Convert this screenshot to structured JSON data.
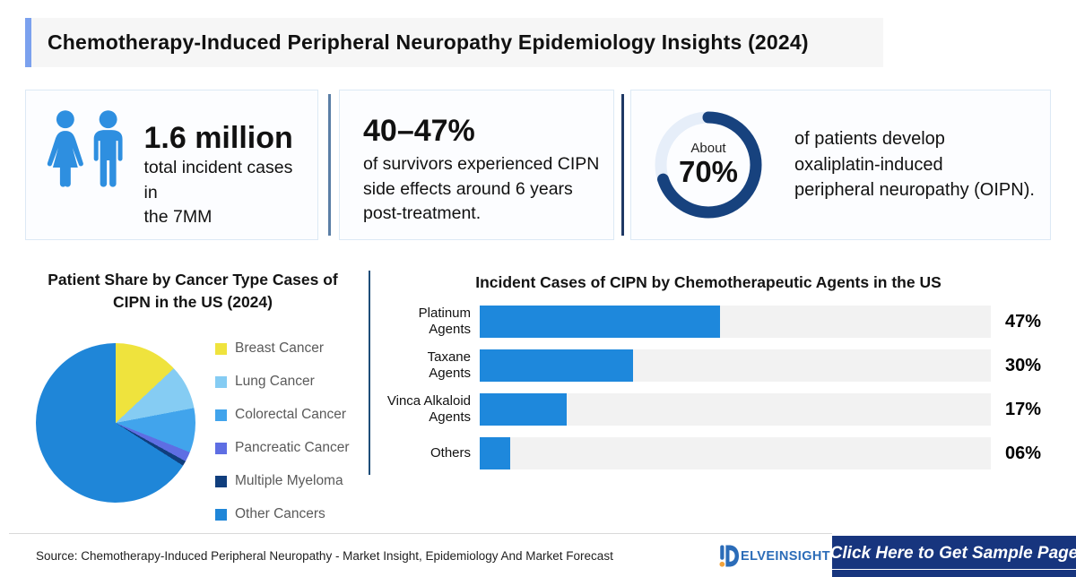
{
  "header": {
    "title": "Chemotherapy-Induced Peripheral Neuropathy Epidemiology Insights (2024)"
  },
  "stats": {
    "card1": {
      "icon": "male-female-icon",
      "value": "1.6 million",
      "label": "total incident cases in\nthe 7MM"
    },
    "card2": {
      "value": "40–47%",
      "label": "of survivors experienced CIPN\nside effects around 6 years\npost-treatment."
    },
    "card3": {
      "qualifier": "About",
      "value": "70%",
      "percent": 70,
      "label": "of patients develop\noxaliplatin-induced\nperipheral neuropathy (OIPN).",
      "ring_dark_color": "#17427E",
      "ring_light_color": "#E6EEF9"
    }
  },
  "chart_data": [
    {
      "type": "pie",
      "title": "Patient Share by Cancer Type Cases of\nCIPN in the US (2024)",
      "categories": [
        "Breast Cancer",
        "Lung Cancer",
        "Colorectal Cancer",
        "Pancreatic Cancer",
        "Multiple Myeloma",
        "Other Cancers"
      ],
      "values": [
        13,
        9,
        9,
        2,
        1,
        66
      ],
      "unit": "percent-share-estimated-from-slice-angles",
      "colors": [
        "#EFE33D",
        "#85CCF3",
        "#41A4EC",
        "#5E6EE3",
        "#103E7D",
        "#1F86D8"
      ],
      "legend_position": "right",
      "start_angle_deg": 0,
      "direction": "clockwise"
    },
    {
      "type": "bar",
      "title": "Incident Cases of CIPN by Chemotherapeutic Agents in the US",
      "orientation": "horizontal",
      "categories": [
        "Platinum\nAgents",
        "Taxane\nAgents",
        "Vinca Alkaloid\nAgents",
        "Others"
      ],
      "values": [
        47,
        30,
        17,
        6
      ],
      "value_labels": [
        "47%",
        "30%",
        "17%",
        "06%"
      ],
      "xlim": [
        0,
        100
      ],
      "bar_color": "#1E88DC",
      "track_color": "#F2F2F2",
      "grid": false,
      "legend": false
    }
  ],
  "footer": {
    "source": "Source: Chemotherapy-Induced Peripheral Neuropathy - Market Insight, Epidemiology And Market Forecast",
    "logo_d": "D",
    "logo_rest": "ELVEINSIGHT",
    "cta_label": "Click Here to Get Sample Page"
  },
  "colors": {
    "header_accent": "#7BA1EE",
    "header_bg": "#F6F6F6",
    "card_bg": "#FCFDFF",
    "card_border": "#DCE9F5",
    "divider_steel": "#5B7FA6",
    "divider_navy": "#1F3864",
    "mid_divider": "#1F4E79",
    "people_icon_blue": "#2E8FE0",
    "cta_bg": "#17357E",
    "logo_blue": "#2B6CB8",
    "logo_orange": "#F2A33C",
    "legend_text": "#5A5A5A"
  }
}
